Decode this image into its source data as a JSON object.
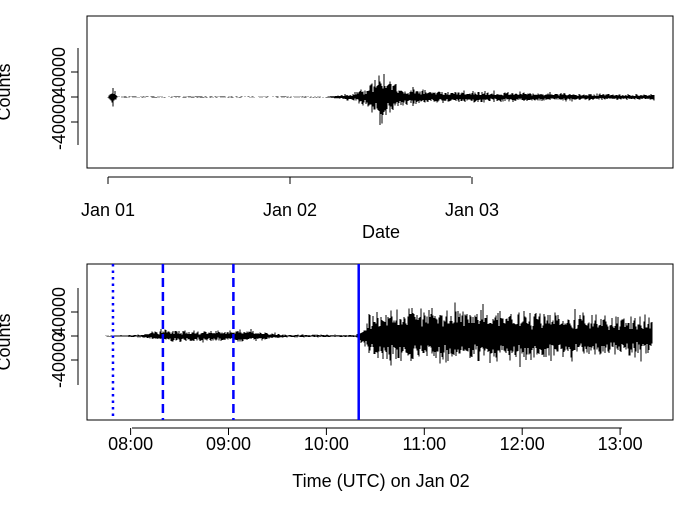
{
  "chart_data": [
    {
      "type": "line",
      "title": "",
      "xlabel": "Date",
      "ylabel": "Counts",
      "x_unit": "days since Jan 01",
      "xlim": [
        -0.1,
        3.05
      ],
      "ylim": [
        -80000,
        80000
      ],
      "x_ticks": [
        {
          "value": 0,
          "label": "Jan 01"
        },
        {
          "value": 1,
          "label": "Jan 02"
        },
        {
          "value": 2,
          "label": "Jan 03"
        }
      ],
      "y_ticks": [
        {
          "value": -40000,
          "label": "-40000"
        },
        {
          "value": 0,
          "label": ""
        },
        {
          "value": 40000,
          "label": "40000"
        }
      ],
      "series": [
        {
          "color": "#000000",
          "x_range": [
            0,
            3.0
          ],
          "envelope": {
            "x": [
              0.0,
              0.03,
              0.05,
              1.2,
              1.35,
              1.42,
              1.5,
              1.6,
              1.8,
              2.2,
              2.6,
              3.0
            ],
            "amp": [
              800,
              22000,
              800,
              800,
              8000,
              18000,
              55000,
              20000,
              12000,
              10000,
              7000,
              6000
            ]
          }
        }
      ]
    },
    {
      "type": "line",
      "title": "",
      "xlabel": "Time (UTC) on Jan 02",
      "ylabel": "Counts",
      "x_unit": "hour of day (UTC)",
      "xlim": [
        7.5,
        13.6
      ],
      "ylim": [
        -80000,
        80000
      ],
      "x_ticks": [
        {
          "value": 8,
          "label": "08:00"
        },
        {
          "value": 9,
          "label": "09:00"
        },
        {
          "value": 10,
          "label": "10:00"
        },
        {
          "value": 11,
          "label": "11:00"
        },
        {
          "value": 12,
          "label": "12:00"
        },
        {
          "value": 13,
          "label": "13:00"
        }
      ],
      "y_ticks": [
        {
          "value": -40000,
          "label": "-40000"
        },
        {
          "value": 0,
          "label": ""
        },
        {
          "value": 40000,
          "label": "40000"
        }
      ],
      "series": [
        {
          "color": "#000000",
          "x_range": [
            7.75,
            13.33
          ],
          "envelope": {
            "x": [
              7.75,
              8.1,
              8.3,
              9.25,
              9.6,
              10.3,
              10.38,
              10.45,
              11.0,
              12.0,
              13.33
            ],
            "amp": [
              800,
              3000,
              12000,
              12000,
              3000,
              2500,
              20000,
              52000,
              60000,
              52000,
              42000
            ]
          }
        }
      ],
      "vlines": [
        {
          "x": 7.82,
          "color": "#0000ff",
          "style": "dotted"
        },
        {
          "x": 8.33,
          "color": "#0000ff",
          "style": "dashed"
        },
        {
          "x": 9.05,
          "color": "#0000ff",
          "style": "dashed"
        },
        {
          "x": 10.33,
          "color": "#0000ff",
          "style": "solid"
        }
      ]
    }
  ]
}
